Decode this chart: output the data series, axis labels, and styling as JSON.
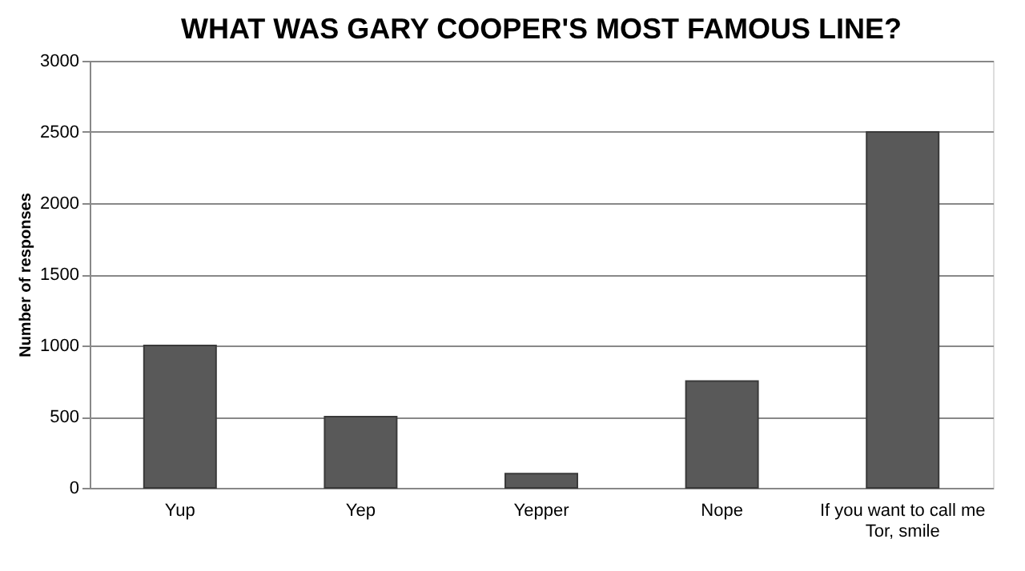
{
  "chart_data": {
    "type": "bar",
    "title": "WHAT WAS GARY COOPER'S MOST FAMOUS LINE?",
    "ylabel": "Number of responses",
    "categories": [
      "Yup",
      "Yep",
      "Yepper",
      "Nope",
      "If you want to call me Tor, smile"
    ],
    "values": [
      1000,
      500,
      100,
      750,
      2500
    ],
    "color": "#595959",
    "ylim": [
      0,
      3000
    ],
    "yticks": [
      0,
      500,
      1000,
      1500,
      2000,
      2500,
      3000
    ],
    "grid": "y"
  }
}
